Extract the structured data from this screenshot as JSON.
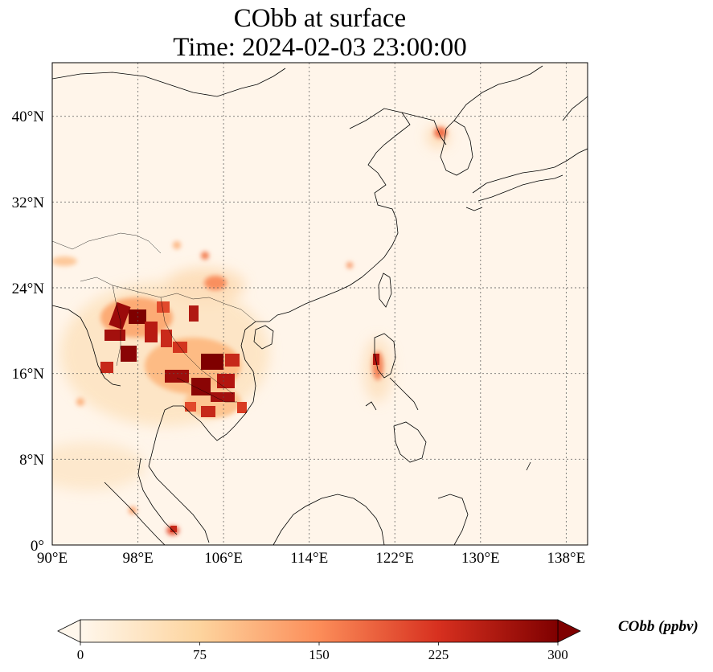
{
  "map": {
    "title_line1": "CObb at surface",
    "title_line2": "Time: 2024-02-03 23:00:00",
    "lon_labels": [
      "90°E",
      "98°E",
      "106°E",
      "114°E",
      "122°E",
      "130°E",
      "138°E"
    ],
    "lat_labels": [
      "0°",
      "8°N",
      "16°N",
      "24°N",
      "32°N",
      "40°N"
    ],
    "extent": {
      "lon": [
        90,
        140
      ],
      "lat": [
        0,
        45
      ]
    },
    "gridlines": true,
    "colormap": "OrRd"
  },
  "colorbar": {
    "label": "CObb (ppbv)",
    "ticks": [
      "0",
      "75",
      "150",
      "225",
      "300"
    ],
    "range": [
      0,
      300
    ],
    "extend": "both",
    "colors": [
      "#fff7ec",
      "#fdd49e",
      "#fc8d59",
      "#d7301f",
      "#7f0000"
    ]
  }
}
